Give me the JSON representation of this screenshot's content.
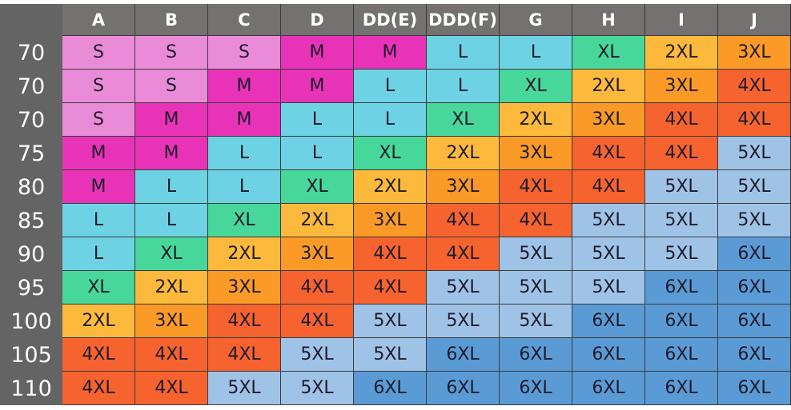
{
  "columns": [
    "A",
    "B",
    "C",
    "D",
    "DD(E)",
    "DDD(F)",
    "G",
    "H",
    "I",
    "J"
  ],
  "size_colors": {
    "S": "#ea8bd8",
    "M": "#e833b8",
    "L": "#6dd3e4",
    "XL": "#47d79b",
    "2XL": "#fdb93b",
    "3XL": "#fc9a27",
    "4XL": "#f6632e",
    "5XL": "#9fc3e7",
    "6XL": "#5b9bd5"
  },
  "rows": [
    {
      "label": "70",
      "cells": [
        "S",
        "S",
        "S",
        "M",
        "M",
        "L",
        "L",
        "XL",
        "2XL",
        "3XL"
      ]
    },
    {
      "label": "70",
      "cells": [
        "S",
        "S",
        "M",
        "M",
        "L",
        "L",
        "XL",
        "2XL",
        "3XL",
        "4XL"
      ]
    },
    {
      "label": "70",
      "cells": [
        "S",
        "M",
        "M",
        "L",
        "L",
        "XL",
        "2XL",
        "3XL",
        "4XL",
        "4XL"
      ]
    },
    {
      "label": "75",
      "cells": [
        "M",
        "M",
        "L",
        "L",
        "XL",
        "2XL",
        "3XL",
        "4XL",
        "4XL",
        "5XL"
      ]
    },
    {
      "label": "80",
      "cells": [
        "M",
        "L",
        "L",
        "XL",
        "2XL",
        "3XL",
        "4XL",
        "4XL",
        "5XL",
        "5XL"
      ]
    },
    {
      "label": "85",
      "cells": [
        "L",
        "L",
        "XL",
        "2XL",
        "3XL",
        "4XL",
        "4XL",
        "5XL",
        "5XL",
        "5XL"
      ]
    },
    {
      "label": "90",
      "cells": [
        "L",
        "XL",
        "2XL",
        "3XL",
        "4XL",
        "4XL",
        "5XL",
        "5XL",
        "5XL",
        "6XL"
      ]
    },
    {
      "label": "95",
      "cells": [
        "XL",
        "2XL",
        "3XL",
        "4XL",
        "4XL",
        "5XL",
        "5XL",
        "5XL",
        "6XL",
        "6XL"
      ]
    },
    {
      "label": "100",
      "cells": [
        "2XL",
        "3XL",
        "4XL",
        "4XL",
        "5XL",
        "5XL",
        "5XL",
        "6XL",
        "6XL",
        "6XL"
      ]
    },
    {
      "label": "105",
      "cells": [
        "4XL",
        "4XL",
        "4XL",
        "5XL",
        "5XL",
        "6XL",
        "6XL",
        "6XL",
        "6XL",
        "6XL"
      ]
    },
    {
      "label": "110",
      "cells": [
        "4XL",
        "4XL",
        "5XL",
        "5XL",
        "6XL",
        "6XL",
        "6XL",
        "6XL",
        "6XL",
        "6XL"
      ]
    }
  ]
}
